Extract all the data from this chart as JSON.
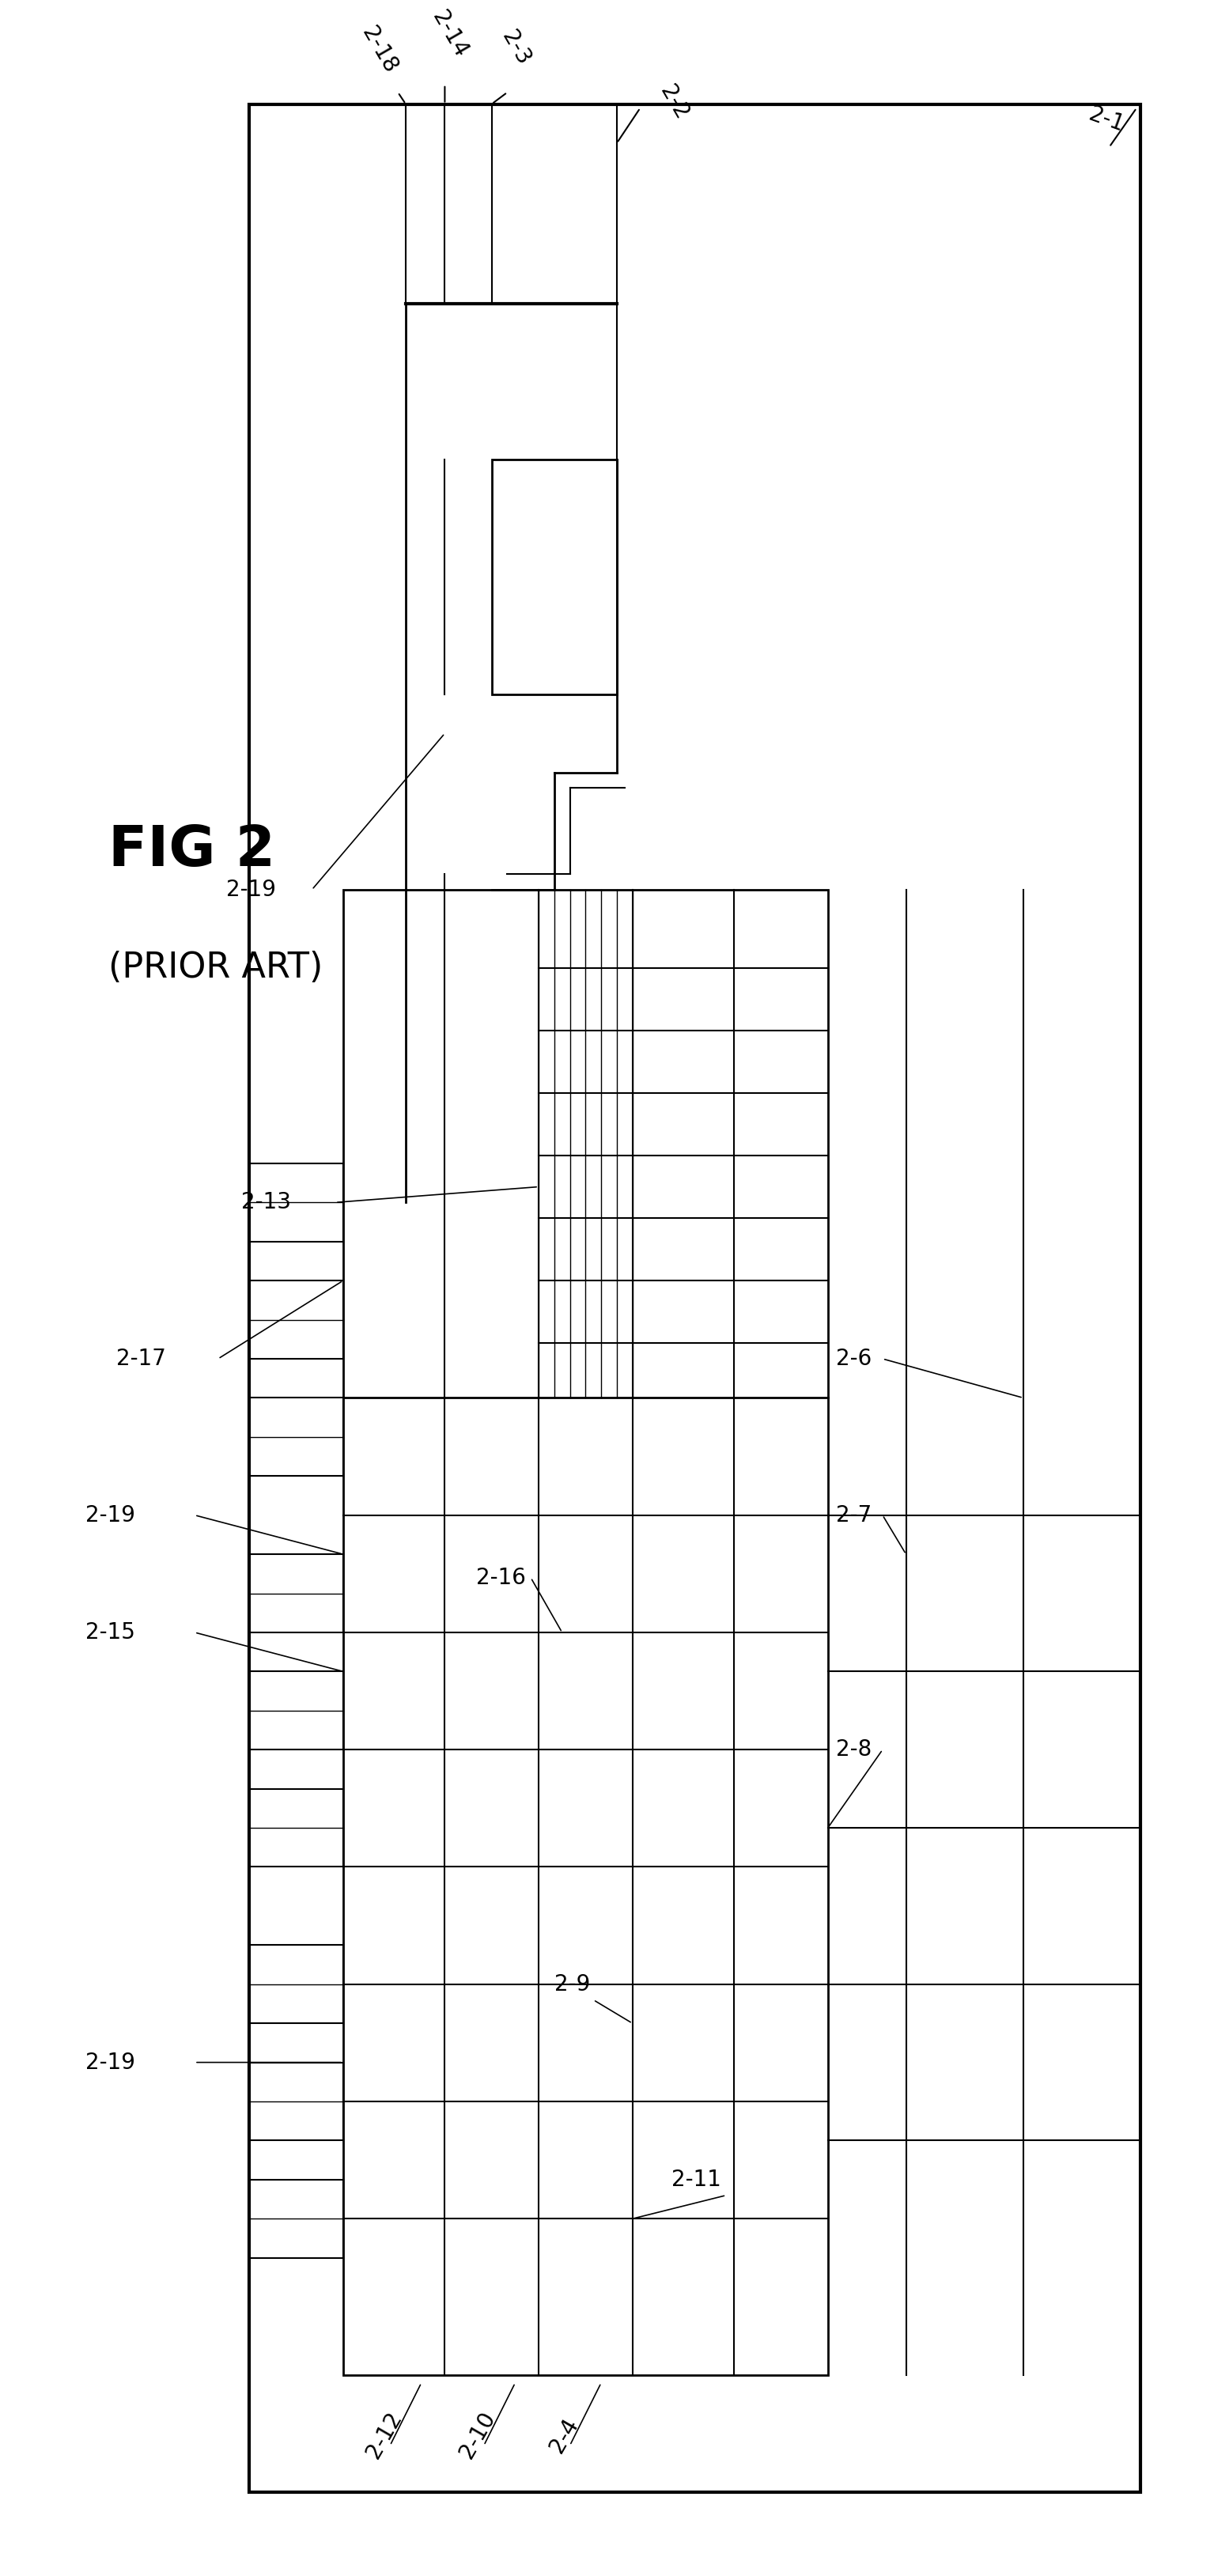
{
  "title": "FIG 2",
  "subtitle": "(PRIOR ART)",
  "bg_color": "#ffffff",
  "line_color": "#000000",
  "lw_thick": 3.0,
  "lw_med": 2.0,
  "lw_thin": 1.5,
  "lw_vthin": 1.0,
  "label_fs": 20,
  "title_fs": 52,
  "subtitle_fs": 32
}
